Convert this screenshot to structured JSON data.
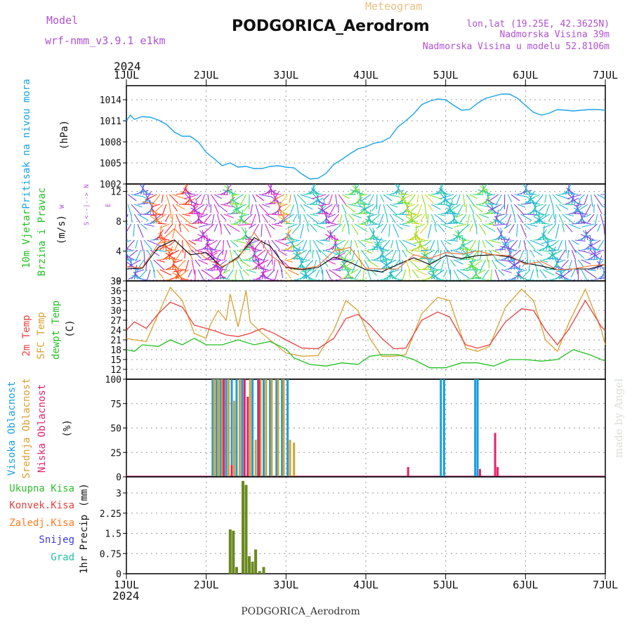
{
  "header": {
    "model_label": "Model",
    "model_name": "wrf-nmm_v3.9.1 e1km",
    "meteogram_label": "Meteogram",
    "station": "PODGORICA_Aerodrom",
    "lonlat": "lon,lat (19.25E, 42.3625N)",
    "elevation": "Nadmorska Visina 39m",
    "model_elevation": "Nadmorska Visina u modelu 52.8106m",
    "year": "2024",
    "footer_station": "PODGORICA_Aerodrom",
    "credit": "made by Angel"
  },
  "colors": {
    "pressure": "#1aa3e8",
    "temp2m": "#e84040",
    "sfc": "#d9a030",
    "dewpt": "#20c020",
    "wind_speed": "#000000",
    "gust": "#ff6a3a",
    "high_cloud": "#1a9ee0",
    "mid_cloud": "#d9a030",
    "low_cloud": "#e8206a",
    "total_precip": "#2ec02e",
    "conv_precip": "#e84040",
    "frz_precip": "#ff7a1a",
    "snow": "#3a3ae8",
    "hail": "#20c0a0",
    "precip_bar": "#6a8a20",
    "purple_text": "#b050d0",
    "credit": "#d8e0d8"
  },
  "chart_data": [
    {
      "type": "line",
      "panel": "pressure",
      "ylabel_main": "Pritisak na nivou mora",
      "ylabel_unit": "(hPa)",
      "x_ticks": [
        "1JUL",
        "2JUL",
        "3JUL",
        "4JUL",
        "5JUL",
        "6JUL",
        "7JUL"
      ],
      "xlim": [
        0,
        6
      ],
      "ylim": [
        1002,
        1016
      ],
      "y_ticks": [
        1002,
        1005,
        1008,
        1011,
        1014
      ],
      "grid": true,
      "series": [
        {
          "x": [
            0,
            0.05,
            0.1,
            0.2,
            0.3,
            0.4,
            0.5,
            0.6,
            0.7,
            0.8,
            0.9,
            1.0,
            1.1,
            1.2,
            1.3,
            1.4,
            1.5,
            1.6,
            1.7,
            1.8,
            1.9,
            2.0,
            2.1,
            2.2,
            2.3,
            2.4,
            2.5,
            2.6,
            2.7,
            2.8,
            2.9,
            3.0,
            3.1,
            3.2,
            3.3,
            3.4,
            3.5,
            3.6,
            3.7,
            3.8,
            3.9,
            4.0,
            4.1,
            4.2,
            4.3,
            4.4,
            4.5,
            4.6,
            4.7,
            4.8,
            4.9,
            5.0,
            5.1,
            5.2,
            5.3,
            5.4,
            5.5,
            5.6,
            5.7,
            5.8,
            5.9,
            6.0
          ],
          "y": [
            1011,
            1011.8,
            1011.2,
            1011.6,
            1011.5,
            1011.1,
            1010.5,
            1009.4,
            1008.8,
            1008.8,
            1008,
            1006.5,
            1005.6,
            1004.6,
            1005.0,
            1004.4,
            1004.5,
            1004.2,
            1004.2,
            1004.5,
            1004.6,
            1004.4,
            1004.3,
            1003.4,
            1002.7,
            1002.8,
            1003.5,
            1004.8,
            1005.5,
            1006.3,
            1007.0,
            1007.3,
            1007.8,
            1008.0,
            1008.6,
            1010.1,
            1011.0,
            1012.0,
            1013.3,
            1013.8,
            1014.1,
            1014.0,
            1013.2,
            1012.5,
            1012.6,
            1013.5,
            1014.2,
            1014.5,
            1014.8,
            1014.8,
            1014.2,
            1013.2,
            1012.2,
            1011.8,
            1012.1,
            1012.6,
            1012.5,
            1012.4,
            1012.5,
            1012.6,
            1012.6,
            1012.5
          ]
        }
      ]
    },
    {
      "type": "line",
      "panel": "wind",
      "ylabel_main": "10m Vjetar",
      "ylabel_sub": "Brzina i Pravac",
      "ylabel_unit": "(m/s)",
      "compass": {
        "n": "N",
        "w": "W",
        "e": "E",
        "s": "S"
      },
      "ylim": [
        0,
        13
      ],
      "y_ticks": [
        0,
        4,
        8,
        12
      ],
      "grid": true,
      "series": [
        {
          "name": "speed",
          "x": [
            0,
            0.2,
            0.4,
            0.6,
            0.8,
            1.0,
            1.2,
            1.4,
            1.6,
            1.8,
            2.0,
            2.2,
            2.4,
            2.6,
            2.8,
            3.0,
            3.2,
            3.4,
            3.6,
            3.8,
            4.0,
            4.2,
            4.4,
            4.6,
            4.8,
            5.0,
            5.2,
            5.4,
            5.6,
            5.8,
            6.0
          ],
          "y": [
            1.6,
            1.7,
            4.5,
            5.5,
            3.5,
            3.8,
            1.8,
            3.2,
            5.8,
            4.7,
            1.8,
            1.5,
            1.8,
            3.2,
            2.5,
            1.5,
            1.2,
            2.2,
            3.1,
            2.2,
            3.4,
            3.0,
            3.4,
            3.5,
            3.2,
            2.4,
            2.0,
            1.5,
            1.6,
            1.6,
            2.2
          ]
        },
        {
          "name": "gust",
          "x": [
            0,
            0.2,
            0.4,
            0.6,
            0.8,
            1.0,
            1.2,
            1.4,
            1.6,
            1.8,
            2.0,
            2.2,
            2.4,
            2.6,
            2.8,
            3.0,
            3.2,
            3.4,
            3.6,
            3.8,
            4.0,
            4.2,
            4.4,
            4.6,
            4.8,
            5.0,
            5.2,
            5.4,
            5.6,
            5.8,
            6.0
          ],
          "y": [
            1.9,
            1.8,
            5.0,
            7.0,
            4.8,
            3.0,
            1.9,
            3.0,
            6.5,
            3.5,
            1.9,
            1.6,
            2.0,
            4.0,
            4.5,
            1.7,
            1.6,
            1.6,
            3.5,
            3.0,
            3.8,
            3.6,
            4.0,
            3.5,
            3.4,
            2.2,
            2.6,
            1.5,
            1.6,
            2.0,
            2.2
          ]
        }
      ]
    },
    {
      "type": "line",
      "panel": "temperature",
      "labels": {
        "t2m": "2m Temp",
        "sfc": "SFC Temp",
        "dewpt": "dewpt Temp"
      },
      "ylabel_unit": "(C)",
      "ylim": [
        9,
        39
      ],
      "y_ticks": [
        12,
        15,
        18,
        21,
        24,
        27,
        30,
        33,
        36,
        39
      ],
      "grid": true,
      "series": [
        {
          "name": "2m Temp",
          "x": [
            0,
            0.1,
            0.25,
            0.4,
            0.55,
            0.7,
            0.85,
            1.0,
            1.1,
            1.25,
            1.4,
            1.55,
            1.7,
            1.85,
            2.0,
            2.2,
            2.4,
            2.6,
            2.75,
            2.9,
            3.05,
            3.2,
            3.35,
            3.5,
            3.7,
            3.9,
            4.05,
            4.25,
            4.4,
            4.55,
            4.75,
            4.95,
            5.1,
            5.25,
            5.4,
            5.55,
            5.75,
            5.95,
            6.0
          ],
          "y": [
            24,
            26.5,
            24.5,
            29,
            32.5,
            31,
            25.5,
            24.5,
            23.8,
            22.5,
            22,
            23,
            24.5,
            23,
            21,
            18.5,
            18.3,
            21.5,
            27.5,
            28.8,
            25.5,
            21.5,
            18.3,
            18.5,
            27,
            29.5,
            28,
            19.5,
            18.5,
            19.5,
            26.5,
            30.5,
            30,
            24,
            19.5,
            24.5,
            33,
            25,
            24
          ]
        },
        {
          "name": "SFC Temp",
          "x": [
            0,
            0.1,
            0.25,
            0.4,
            0.55,
            0.7,
            0.85,
            1.0,
            1.05,
            1.15,
            1.25,
            1.3,
            1.4,
            1.5,
            1.55,
            1.7,
            1.85,
            2.0,
            2.2,
            2.4,
            2.6,
            2.75,
            2.9,
            3.05,
            3.2,
            3.35,
            3.5,
            3.7,
            3.9,
            4.05,
            4.25,
            4.4,
            4.55,
            4.75,
            4.95,
            5.1,
            5.25,
            5.4,
            5.55,
            5.75,
            5.95,
            6.0
          ],
          "y": [
            21.5,
            21,
            20.5,
            29,
            37,
            33,
            23,
            21.5,
            25.5,
            30,
            27,
            35,
            25,
            36,
            26.5,
            23,
            20,
            17,
            16,
            16.2,
            24,
            33,
            30,
            21.5,
            16,
            16,
            16.5,
            29,
            34,
            33,
            18.5,
            17.5,
            19,
            31,
            36.5,
            33,
            21,
            17.5,
            26.5,
            36.5,
            24,
            19.5
          ]
        },
        {
          "name": "dewpt Temp",
          "x": [
            0,
            0.1,
            0.2,
            0.4,
            0.55,
            0.7,
            0.85,
            1.0,
            1.2,
            1.4,
            1.6,
            1.8,
            2.0,
            2.1,
            2.3,
            2.5,
            2.7,
            2.9,
            3.05,
            3.2,
            3.4,
            3.6,
            3.8,
            4.0,
            4.2,
            4.4,
            4.6,
            4.8,
            5.0,
            5.2,
            5.4,
            5.6,
            5.8,
            6.0
          ],
          "y": [
            18,
            17.5,
            19.5,
            19,
            21,
            19.5,
            21.5,
            19.5,
            19.5,
            21,
            19.5,
            20.5,
            18.2,
            15.5,
            13.5,
            13,
            14,
            13.5,
            16,
            16.5,
            16.5,
            15,
            12.5,
            12.5,
            14,
            14,
            13,
            15,
            15,
            14.5,
            15,
            18,
            16.5,
            14.5
          ]
        }
      ]
    },
    {
      "type": "bar",
      "panel": "clouds",
      "labels": {
        "high": "Visoka Oblacnost",
        "mid": "Srednja Oblacnost",
        "low": "Niska Oblacnost"
      },
      "ylabel_unit": "(%)",
      "ylim": [
        0,
        100
      ],
      "y_ticks": [
        0,
        25,
        50,
        75,
        100
      ],
      "grid": true,
      "series": [
        {
          "name": "Visoka Oblacnost",
          "x": [
            1.08,
            1.13,
            1.18,
            1.25,
            1.32,
            1.38,
            1.45,
            1.58,
            1.65,
            1.72,
            1.8,
            1.88,
            1.95,
            2.02,
            3.94,
            3.98,
            4.37,
            4.4
          ],
          "values": [
            100,
            100,
            100,
            100,
            100,
            100,
            100,
            100,
            100,
            100,
            100,
            100,
            100,
            100,
            100,
            100,
            100,
            100
          ]
        },
        {
          "name": "Srednja Oblacnost",
          "x": [
            1.1,
            1.15,
            1.2,
            1.28,
            1.35,
            1.42,
            1.48,
            1.55,
            1.62,
            1.68,
            1.75,
            1.82,
            1.9,
            1.97,
            2.05,
            2.1
          ],
          "values": [
            100,
            100,
            100,
            100,
            78,
            100,
            100,
            100,
            38,
            100,
            100,
            100,
            100,
            100,
            38,
            35
          ]
        },
        {
          "name": "Niska Oblacnost",
          "x": [
            1.22,
            1.32,
            1.48,
            1.52,
            1.66,
            3.53,
            4.43,
            4.62,
            4.65
          ],
          "values": [
            100,
            12,
            100,
            82,
            100,
            10,
            8,
            45,
            10
          ]
        }
      ]
    },
    {
      "type": "bar",
      "panel": "precip",
      "labels": {
        "total": "Ukupna Kisa",
        "conv": "Konvek.Kisa",
        "frz": "Zaledj.Kisa",
        "snow": "Snijeg",
        "hail": "Grad"
      },
      "ylabel_main": "1hr Precip",
      "ylabel_unit": "(mm)",
      "ylim": [
        0,
        3.6
      ],
      "y_ticks": [
        0,
        0.75,
        1.5,
        2.25,
        3
      ],
      "y_tick_labels": [
        "0",
        "0.75",
        "1.5",
        "2.25",
        "3"
      ],
      "grid": true,
      "series": [
        {
          "name": "1hr Precip",
          "x": [
            1.3,
            1.34,
            1.38,
            1.46,
            1.5,
            1.54,
            1.58,
            1.62,
            1.67,
            1.72
          ],
          "values": [
            1.65,
            1.6,
            0.25,
            3.45,
            3.3,
            0.65,
            0.45,
            0.9,
            0.1,
            0.25
          ]
        }
      ]
    }
  ]
}
